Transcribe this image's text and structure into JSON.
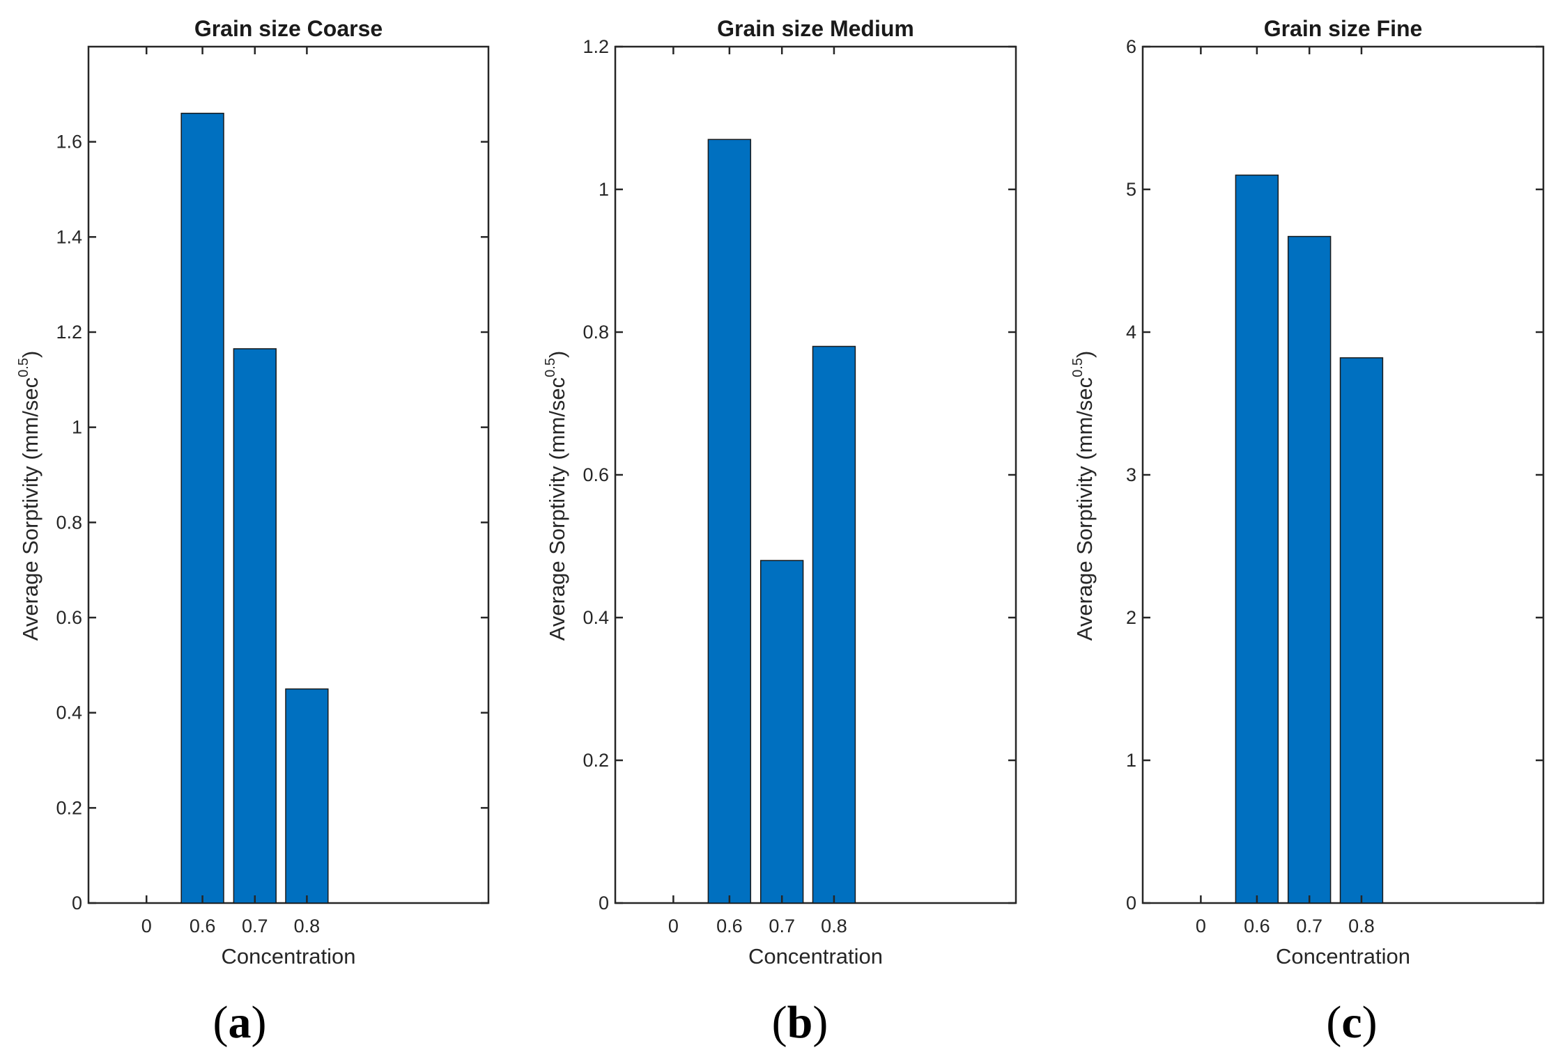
{
  "figure": {
    "panels": [
      {
        "panel_label_open": "(",
        "panel_label_letter": "a",
        "panel_label_close": ")"
      },
      {
        "panel_label_open": "(",
        "panel_label_letter": "b",
        "panel_label_close": ")"
      },
      {
        "panel_label_open": "(",
        "panel_label_letter": "c",
        "panel_label_close": ")"
      }
    ]
  },
  "chart_data": [
    {
      "type": "bar",
      "title": "Grain size Coarse",
      "xlabel": "Concentration",
      "ylabel_main": "Average Sorptivity (mm/sec",
      "ylabel_sup": "0.5",
      "ylabel_close": ")",
      "categories": [
        "0",
        "0.6",
        "0.7",
        "0.8"
      ],
      "values": [
        0,
        1.66,
        1.165,
        0.45
      ],
      "ylim": [
        0,
        1.8
      ],
      "yticks": [
        0,
        0.2,
        0.4,
        0.6,
        0.8,
        1,
        1.2,
        1.4,
        1.6
      ],
      "ytick_labels": [
        "0",
        "0.2",
        "0.4",
        "0.6",
        "0.8",
        "1",
        "1.2",
        "1.4",
        "1.6"
      ],
      "bar_color": "#0070c0",
      "grid": false
    },
    {
      "type": "bar",
      "title": "Grain size Medium",
      "xlabel": "Concentration",
      "ylabel_main": "Average Sorptivity (mm/sec",
      "ylabel_sup": "0.5",
      "ylabel_close": ")",
      "categories": [
        "0",
        "0.6",
        "0.7",
        "0.8"
      ],
      "values": [
        0,
        1.07,
        0.48,
        0.78
      ],
      "ylim": [
        0,
        1.2
      ],
      "yticks": [
        0,
        0.2,
        0.4,
        0.6,
        0.8,
        1,
        1.2
      ],
      "ytick_labels": [
        "0",
        "0.2",
        "0.4",
        "0.6",
        "0.8",
        "1",
        "1.2"
      ],
      "bar_color": "#0070c0",
      "grid": false
    },
    {
      "type": "bar",
      "title": "Grain size Fine",
      "xlabel": "Concentration",
      "ylabel_main": "Average Sorptivity (mm/sec",
      "ylabel_sup": "0.5",
      "ylabel_close": ")",
      "categories": [
        "0",
        "0.6",
        "0.7",
        "0.8"
      ],
      "values": [
        0,
        5.1,
        4.67,
        3.82
      ],
      "ylim": [
        0,
        6
      ],
      "yticks": [
        0,
        1,
        2,
        3,
        4,
        5,
        6
      ],
      "ytick_labels": [
        "0",
        "1",
        "2",
        "3",
        "4",
        "5",
        "6"
      ],
      "bar_color": "#0070c0",
      "grid": false
    }
  ]
}
